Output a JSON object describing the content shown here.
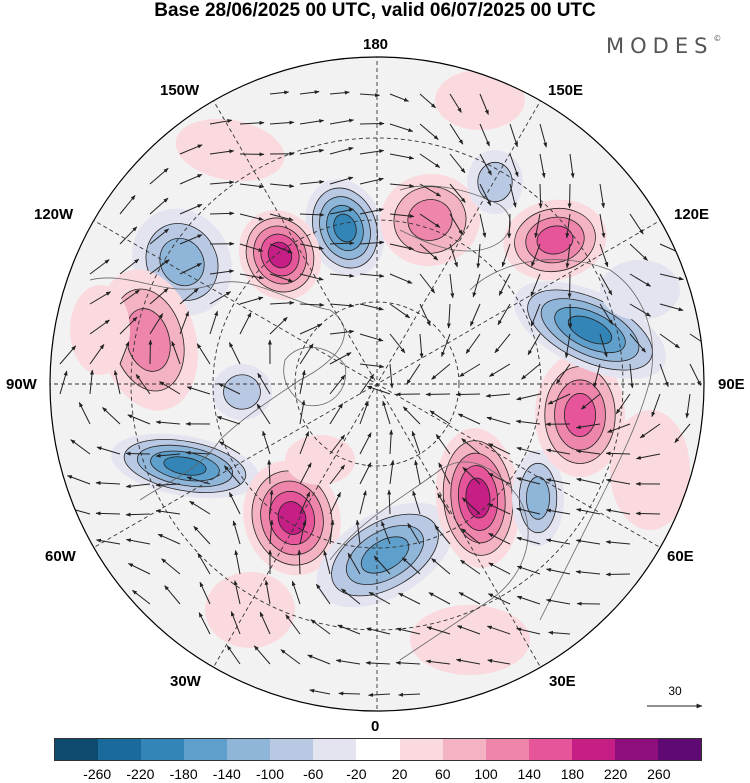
{
  "header": {
    "title": "Base 28/06/2025 00 UTC, valid 06/07/2025 00 UTC",
    "brand": "MODES",
    "brand_mark": "©"
  },
  "map": {
    "projection": "north-polar-stereographic",
    "longitude_labels": {
      "top": "180",
      "bottom": "0",
      "left": "90W",
      "right": "90E",
      "upper_left_1": "150W",
      "upper_left_2": "120W",
      "upper_right_1": "150E",
      "upper_right_2": "120E",
      "lower_left_1": "60W",
      "lower_left_2": "30W",
      "lower_right_1": "60E",
      "lower_right_2": "30E"
    },
    "wind_reference_label": "30"
  },
  "colorbar": {
    "colors": [
      "#0d4a6e",
      "#1a6b9c",
      "#3485b7",
      "#5e9fcb",
      "#8fb5d9",
      "#b9c8e3",
      "#e4e4f1",
      "#ffffff",
      "#fadadf",
      "#f4b3c3",
      "#ee86ab",
      "#e6559a",
      "#c51f86",
      "#8f0e7e",
      "#5e0a72"
    ],
    "tick_labels": [
      "-260",
      "-220",
      "-180",
      "-140",
      "-100",
      "-60",
      "-20",
      "20",
      "60",
      "100",
      "140",
      "180",
      "220",
      "260"
    ]
  }
}
